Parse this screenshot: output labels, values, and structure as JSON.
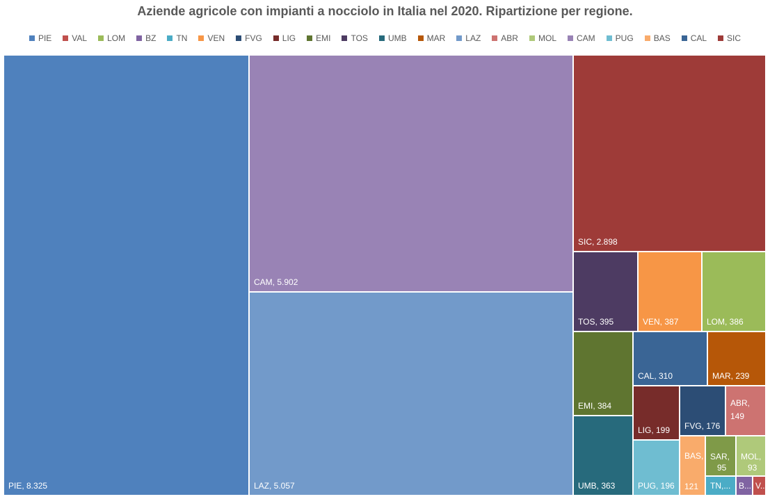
{
  "chart_data": {
    "type": "treemap",
    "title": "Aziende agricole con impianti a nocciolo in Italia nel 2020. Ripartizione per regione.",
    "legend": [
      "PIE",
      "VAL",
      "LOM",
      "BZ",
      "TN",
      "VEN",
      "FVG",
      "LIG",
      "EMI",
      "TOS",
      "UMB",
      "MAR",
      "LAZ",
      "ABR",
      "MOL",
      "CAM",
      "PUG",
      "BAS",
      "CAL",
      "SIC"
    ],
    "legend_placement": "top",
    "colors": {
      "PIE": "#4f81bd",
      "VAL": "#c0504d",
      "LOM": "#9bbb59",
      "BZ": "#8064a2",
      "TN": "#4bacc6",
      "VEN": "#f79646",
      "FVG": "#2c4d75",
      "LIG": "#772c2a",
      "EMI": "#5f7530",
      "TOS": "#4d3b62",
      "UMB": "#276a7c",
      "MAR": "#b65708",
      "LAZ": "#729aca",
      "ABR": "#cd7371",
      "MOL": "#afc97a",
      "CAM": "#9983b5",
      "PUG": "#6fbdd1",
      "BAS": "#f9ab6b",
      "CAL": "#3a6595",
      "SIC": "#9e3b38",
      "SAR": "#7f9a48",
      "BZ_": "#8064a2"
    },
    "data": [
      {
        "name": "PIE",
        "value": 8325,
        "label": "PIE, 8.325"
      },
      {
        "name": "CAM",
        "value": 5902,
        "label": "CAM, 5.902"
      },
      {
        "name": "LAZ",
        "value": 5057,
        "label": "LAZ, 5.057"
      },
      {
        "name": "SIC",
        "value": 2898,
        "label": "SIC, 2.898"
      },
      {
        "name": "TOS",
        "value": 395,
        "label": "TOS, 395"
      },
      {
        "name": "VEN",
        "value": 387,
        "label": "VEN, 387"
      },
      {
        "name": "LOM",
        "value": 386,
        "label": "LOM, 386"
      },
      {
        "name": "EMI",
        "value": 384,
        "label": "EMI, 384"
      },
      {
        "name": "UMB",
        "value": 363,
        "label": "UMB, 363"
      },
      {
        "name": "CAL",
        "value": 310,
        "label": "CAL, 310"
      },
      {
        "name": "MAR",
        "value": 239,
        "label": "MAR, 239"
      },
      {
        "name": "LIG",
        "value": 199,
        "label": "LIG, 199"
      },
      {
        "name": "PUG",
        "value": 196,
        "label": "PUG, 196"
      },
      {
        "name": "FVG",
        "value": 176,
        "label": "FVG, 176"
      },
      {
        "name": "ABR",
        "value": 149,
        "label": "ABR, 149"
      },
      {
        "name": "BAS",
        "value": 121,
        "label": "BAS, 121"
      },
      {
        "name": "SAR",
        "value": 95,
        "label": "SAR, 95"
      },
      {
        "name": "MOL",
        "value": 93,
        "label": "MOL, 93"
      },
      {
        "name": "TN",
        "value": null,
        "label": "TN,..."
      },
      {
        "name": "BZ",
        "value": null,
        "label": "B..."
      },
      {
        "name": "VAL",
        "value": null,
        "label": "V..."
      }
    ]
  }
}
